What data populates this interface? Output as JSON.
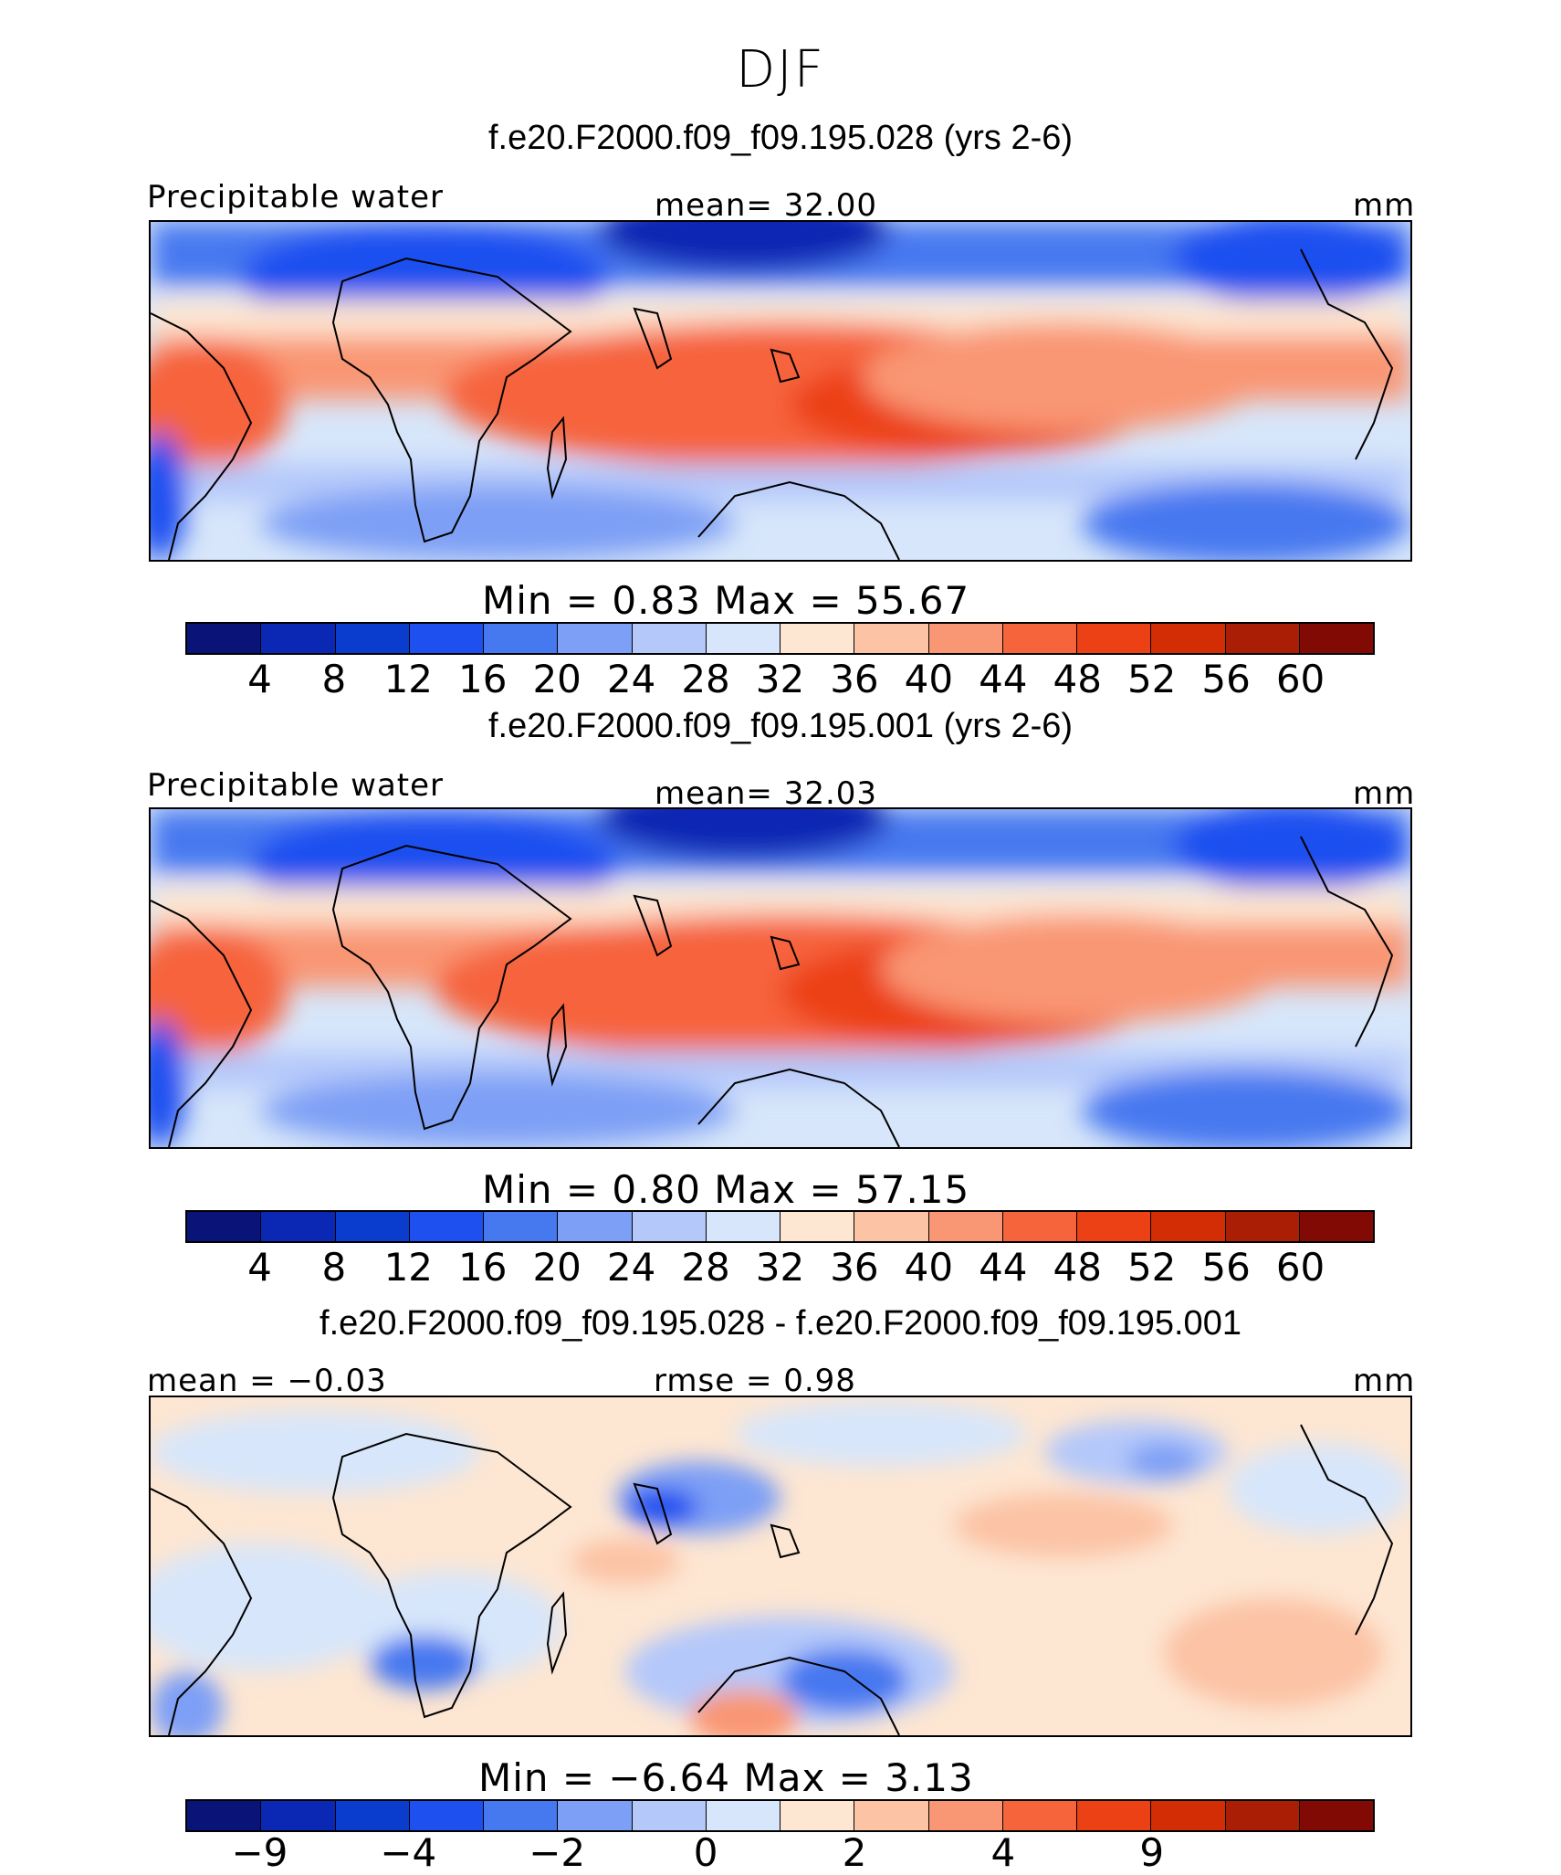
{
  "season": "DJF",
  "panels": [
    {
      "title": "f.e20.F2000.f09_f09.195.028 (yrs 2-6)",
      "left_label": "Precipitable water",
      "center_label": "mean=   32.00",
      "units": "mm",
      "minmax": "Min  =     0.83  Max  =    55.67",
      "tick_labels": [
        "4",
        "8",
        "12",
        "16",
        "20",
        "24",
        "28",
        "32",
        "36",
        "40",
        "44",
        "48",
        "52",
        "56",
        "60"
      ]
    },
    {
      "title": "f.e20.F2000.f09_f09.195.001 (yrs 2-6)",
      "left_label": "Precipitable water",
      "center_label": "mean=   32.03",
      "units": "mm",
      "minmax": "Min  =     0.80  Max  =    57.15",
      "tick_labels": [
        "4",
        "8",
        "12",
        "16",
        "20",
        "24",
        "28",
        "32",
        "36",
        "40",
        "44",
        "48",
        "52",
        "56",
        "60"
      ]
    },
    {
      "title": "f.e20.F2000.f09_f09.195.028 - f.e20.F2000.f09_f09.195.001",
      "left_label": "mean  =   −0.03",
      "center_label": "rmse  =    0.98",
      "units": "mm",
      "minmax": "Min  =   −6.64  Max  =     3.13",
      "tick_labels": [
        "−9",
        "",
        "−4",
        "",
        "−2",
        "",
        "0",
        "",
        "2",
        "",
        "4",
        "",
        "9",
        ""
      ]
    }
  ],
  "colors": {
    "cbar_abs": [
      "#0a1478",
      "#0a28b4",
      "#0a3ccd",
      "#1e50f0",
      "#4678f0",
      "#7d9ff5",
      "#b4c8fa",
      "#d7e6fa",
      "#fde6d2",
      "#fcc3a5",
      "#f99673",
      "#f6643c",
      "#ec4114",
      "#d22d05",
      "#aa1e05",
      "#820a05"
    ],
    "cbar_diff": [
      "#0a1478",
      "#0a28b4",
      "#0a3ccd",
      "#1e50f0",
      "#4678f0",
      "#7d9ff5",
      "#b4c8fa",
      "#d7e6fa",
      "#fde6d2",
      "#fcc3a5",
      "#f99673",
      "#f6643c",
      "#ec4114",
      "#d22d05",
      "#aa1e05",
      "#820a05"
    ]
  }
}
